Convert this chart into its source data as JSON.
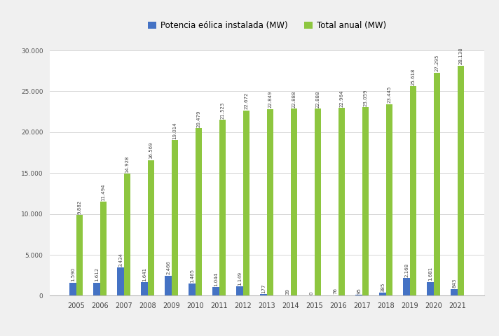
{
  "years": [
    "2005",
    "2006",
    "2007",
    "2008",
    "2009",
    "2010",
    "2011",
    "2012",
    "2013",
    "2014",
    "2015",
    "2016",
    "2017",
    "2018",
    "2019",
    "2020",
    "2021"
  ],
  "potencia_instalada": [
    1590,
    1612,
    3434,
    1641,
    2466,
    1465,
    1044,
    1149,
    177,
    39,
    0,
    76,
    95,
    385,
    2168,
    1681,
    843
  ],
  "total_anual": [
    9882,
    11494,
    14928,
    16569,
    19014,
    20479,
    21523,
    22672,
    22849,
    22888,
    22888,
    22964,
    23059,
    23445,
    25618,
    27295,
    28138
  ],
  "bar_color_blue": "#4472c4",
  "bar_color_green": "#8dc63f",
  "background_color": "#f0f0f0",
  "plot_bg_color": "#ffffff",
  "legend_labels": [
    "Potencia eólica instalada (MW)",
    "Total anual (MW)"
  ],
  "ylim": [
    0,
    30000
  ],
  "yticks": [
    0,
    5000,
    10000,
    15000,
    20000,
    25000,
    30000
  ],
  "ytick_labels": [
    "0",
    "5.000",
    "10.000",
    "15.000",
    "20.000",
    "25.000",
    "30.000"
  ],
  "label_fontsize": 5.0,
  "legend_fontsize": 8.5,
  "bar_width": 0.28,
  "figsize": [
    7.12,
    4.8
  ]
}
